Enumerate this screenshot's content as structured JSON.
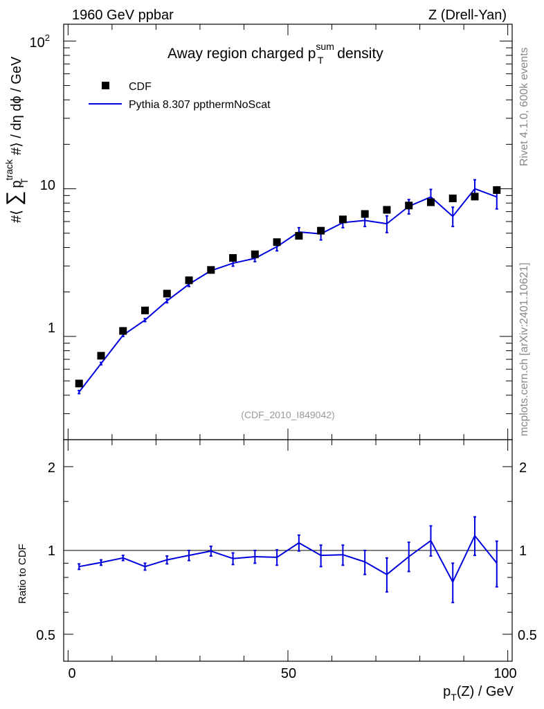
{
  "header": {
    "energy": "1960 GeV ppbar",
    "process": "Z (Drell-Yan)"
  },
  "side_labels": {
    "rivet": "Rivet 4.1.0,  600k events",
    "source": "mcplots.cern.ch [arXiv:2401.10621]"
  },
  "reference": "(CDF_2010_I849042)",
  "colors": {
    "mc": "#0000dd",
    "data": "#000000",
    "frame": "#000000"
  },
  "chart_data": [
    {
      "type": "scatter",
      "panel": "main",
      "title": "Away region charged p_T^sum density",
      "title_parts": {
        "pre": "Away region charged p",
        "sup": "sum",
        "sub": "T",
        "post": " density"
      },
      "ylabel": "#⟨ ∑ p_T^track #⟩ / dη dϕ / GeV",
      "ylabel_parts": {
        "a": "#⟨",
        "sum": "∑",
        "p": "p",
        "sup": "track",
        "sub": "T",
        "b": " #⟩ / dη dϕ / GeV"
      },
      "yscale": "log",
      "ylim": [
        0.2,
        130
      ],
      "xlim": [
        -1,
        101
      ],
      "ytick_labels": {
        "major_100": "10",
        "major_100_exp": "2",
        "major_10": "10",
        "major_1": "1"
      },
      "legend": {
        "data": "CDF",
        "mc": "Pythia 8.307 ppthermNoScat"
      },
      "x": [
        2.5,
        7.5,
        12.5,
        17.5,
        22.5,
        27.5,
        32.5,
        37.5,
        42.5,
        47.5,
        52.5,
        57.5,
        62.5,
        67.5,
        72.5,
        77.5,
        82.5,
        87.5,
        92.5,
        97.5
      ],
      "series": [
        {
          "name": "CDF",
          "kind": "markers",
          "values": [
            0.48,
            0.74,
            1.09,
            1.5,
            1.95,
            2.4,
            2.82,
            3.4,
            3.6,
            4.35,
            4.8,
            5.2,
            6.2,
            6.75,
            7.2,
            7.7,
            8.1,
            8.6,
            8.85,
            9.8
          ]
        },
        {
          "name": "Pythia 8.307 ppthermNoScat",
          "kind": "line",
          "values": [
            0.42,
            0.655,
            1.02,
            1.29,
            1.74,
            2.26,
            2.79,
            3.13,
            3.38,
            4.05,
            5.1,
            4.95,
            5.9,
            6.1,
            5.8,
            7.6,
            8.8,
            6.5,
            10.0,
            8.8
          ],
          "err_lo": [
            0.01,
            0.012,
            0.02,
            0.03,
            0.05,
            0.08,
            0.1,
            0.14,
            0.17,
            0.25,
            0.35,
            0.45,
            0.45,
            0.55,
            0.75,
            0.85,
            1.0,
            0.95,
            1.4,
            1.5
          ],
          "err_hi": [
            0.01,
            0.012,
            0.02,
            0.03,
            0.05,
            0.08,
            0.1,
            0.14,
            0.17,
            0.25,
            0.35,
            0.45,
            0.45,
            0.55,
            0.75,
            0.85,
            1.1,
            1.0,
            1.5,
            1.5
          ]
        }
      ]
    },
    {
      "type": "line",
      "panel": "ratio",
      "ylabel": "Ratio to CDF",
      "xlabel": "p_T(Z) / GeV",
      "xlabel_parts": {
        "p": "p",
        "sub": "T",
        "rest": "(Z) / GeV"
      },
      "yscale": "log",
      "ylim": [
        0.4,
        2.5
      ],
      "xlim": [
        -1,
        101
      ],
      "xticks": [
        "0",
        "50",
        "100"
      ],
      "yticks": [
        "0.5",
        "1",
        "2"
      ],
      "reference_line": 1.0,
      "x": [
        2.5,
        7.5,
        12.5,
        17.5,
        22.5,
        27.5,
        32.5,
        37.5,
        42.5,
        47.5,
        52.5,
        57.5,
        62.5,
        67.5,
        72.5,
        77.5,
        82.5,
        87.5,
        92.5,
        97.5
      ],
      "series": [
        {
          "name": "Pythia 8.307 ppthermNoScat / CDF",
          "values": [
            0.875,
            0.905,
            0.94,
            0.875,
            0.925,
            0.96,
            0.995,
            0.935,
            0.95,
            0.945,
            1.065,
            0.96,
            0.965,
            0.91,
            0.82,
            0.95,
            1.085,
            0.77,
            1.13,
            0.9
          ],
          "err_lo": [
            0.02,
            0.02,
            0.02,
            0.025,
            0.03,
            0.04,
            0.04,
            0.045,
            0.05,
            0.06,
            0.07,
            0.085,
            0.08,
            0.09,
            0.11,
            0.11,
            0.13,
            0.12,
            0.17,
            0.16
          ],
          "err_hi": [
            0.02,
            0.02,
            0.02,
            0.025,
            0.03,
            0.04,
            0.04,
            0.045,
            0.05,
            0.06,
            0.07,
            0.085,
            0.08,
            0.09,
            0.12,
            0.12,
            0.14,
            0.13,
            0.19,
            0.18
          ]
        }
      ]
    }
  ]
}
